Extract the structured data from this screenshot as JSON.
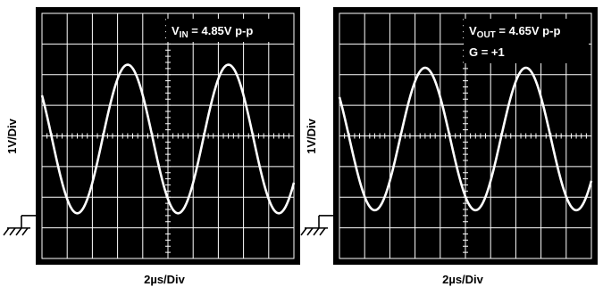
{
  "chart_data": [
    {
      "type": "line",
      "title": "",
      "annotation": {
        "prefix": "V",
        "subscript": "IN",
        "value": " = 4.85V p-p"
      },
      "xlabel": "2µs/Div",
      "ylabel": "1V/Div",
      "grid": true,
      "divisions": {
        "x": 10,
        "y": 8
      },
      "xlim": [
        0,
        20
      ],
      "ylim": [
        -4,
        4
      ],
      "x_units": "µs",
      "y_units": "V",
      "series": [
        {
          "waveform": "sine",
          "amplitude_pp": 4.85,
          "period": 8.0,
          "peak_x": [
            6.8,
            14.8
          ],
          "trough_x": [
            2.8,
            10.8
          ],
          "offset": -0.1
        }
      ],
      "ground_marker": {
        "y": -2.6
      }
    },
    {
      "type": "line",
      "title": "",
      "annotation": {
        "prefix": "V",
        "subscript": "OUT",
        "value": " = 4.65V p-p"
      },
      "annotation2": "G = +1",
      "xlabel": "2µs/Div",
      "ylabel": "1V/Div",
      "grid": true,
      "divisions": {
        "x": 10,
        "y": 8
      },
      "xlim": [
        0,
        20
      ],
      "ylim": [
        -4,
        4
      ],
      "x_units": "µs",
      "y_units": "V",
      "series": [
        {
          "waveform": "sine",
          "amplitude_pp": 4.65,
          "period": 8.0,
          "peak_x": [
            6.8,
            14.8
          ],
          "trough_x": [
            2.8,
            10.8
          ],
          "offset": -0.1
        }
      ],
      "ground_marker": {
        "y": -2.6
      }
    }
  ]
}
